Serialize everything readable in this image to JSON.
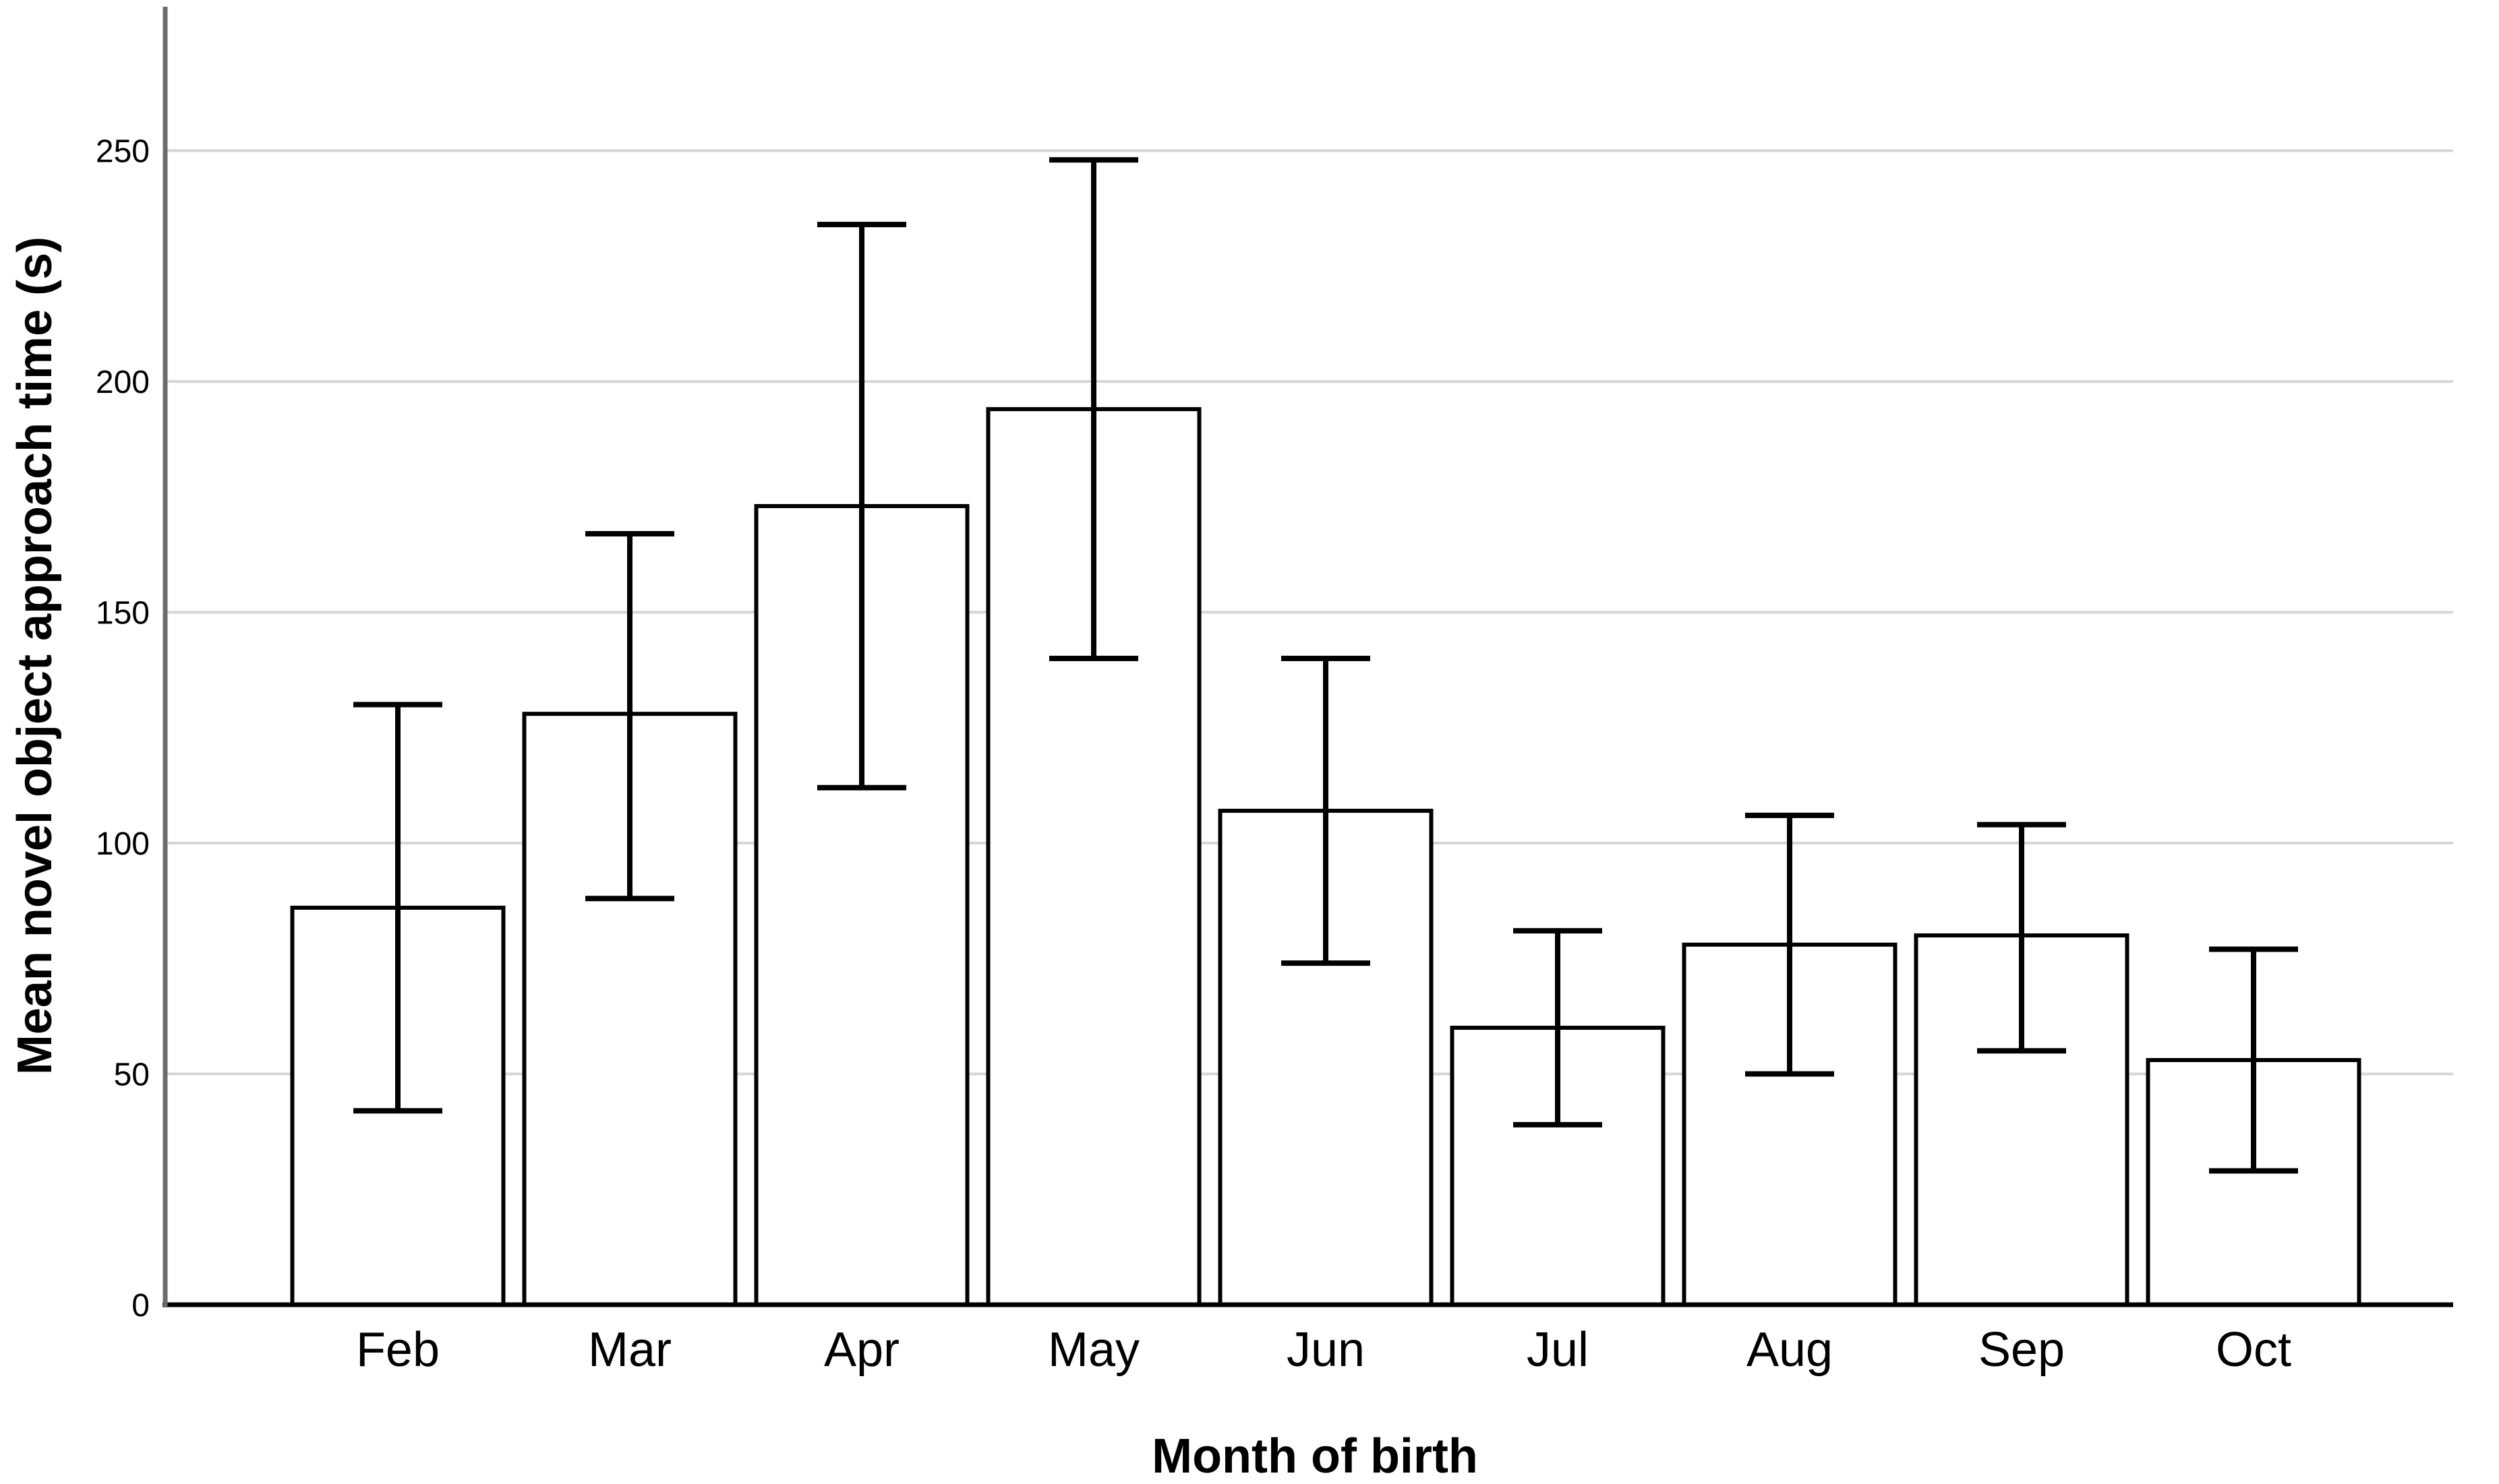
{
  "page": {
    "background": "#ffffff"
  },
  "chart_data": {
    "type": "bar",
    "title": "",
    "xlabel": "Month of birth",
    "ylabel": "Mean novel object approach time (s)",
    "categories": [
      "Feb",
      "Mar",
      "Apr",
      "May",
      "Jun",
      "Jul",
      "Aug",
      "Sep",
      "Oct"
    ],
    "values": [
      86,
      128,
      173,
      194,
      107,
      60,
      78,
      80,
      53
    ],
    "error_bars": {
      "upper": [
        130,
        167,
        234,
        248,
        140,
        81,
        106,
        104,
        77
      ],
      "lower": [
        42,
        88,
        112,
        140,
        74,
        39,
        50,
        55,
        29
      ]
    },
    "yticks": [
      0,
      50,
      100,
      150,
      200,
      250
    ],
    "ylim": [
      0,
      281
    ],
    "grid": "horizontal",
    "legend": "none",
    "bar_fill": "#ffffff",
    "bar_border_color": "#000000",
    "error_bar_color": "#000000",
    "gridline_color": "#d6d6d6",
    "baseline_color": "#000000",
    "axis_line_color": "#6b6b6b",
    "text_color": "#000000"
  }
}
